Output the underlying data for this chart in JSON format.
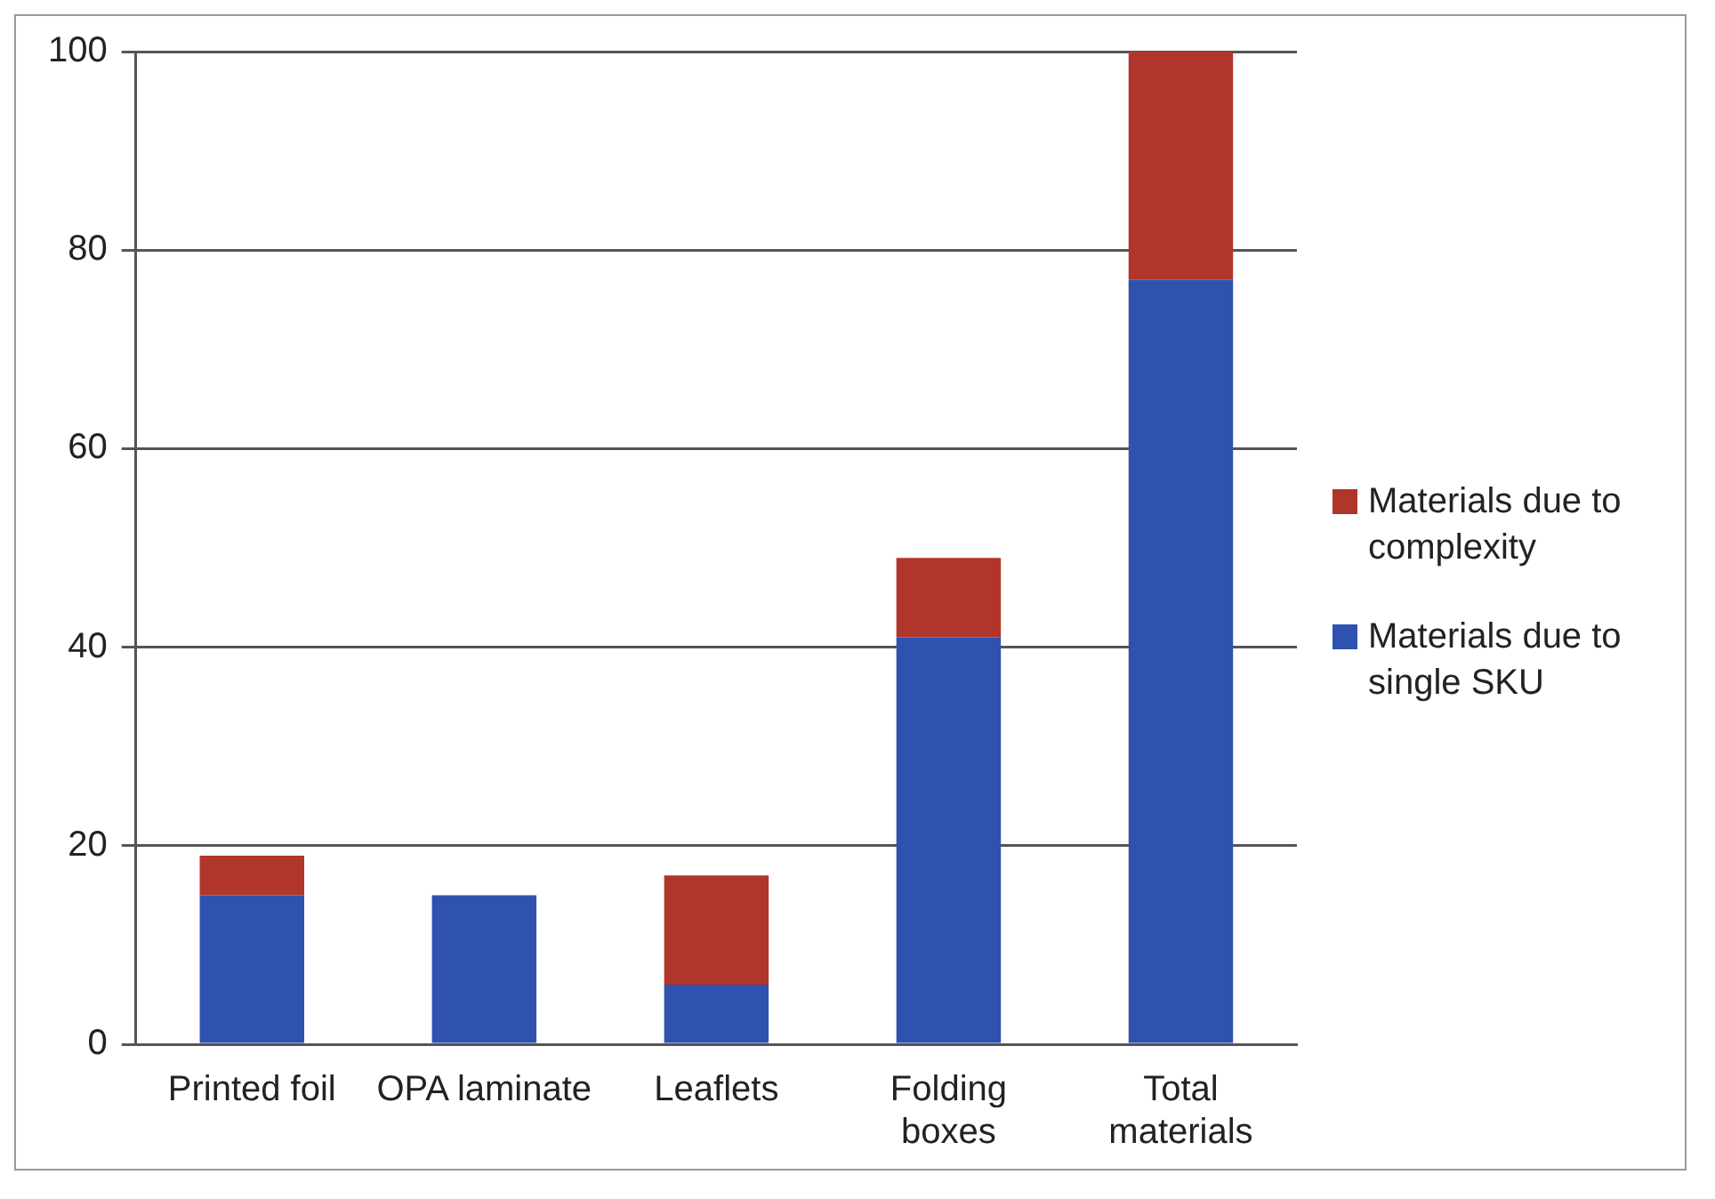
{
  "chart_data": {
    "type": "bar",
    "stacked": true,
    "categories": [
      "Printed foil",
      "OPA laminate",
      "Leaflets",
      "Folding boxes",
      "Total materials"
    ],
    "series": [
      {
        "name": "Materials due to single SKU",
        "color": "#2f52b0",
        "values": [
          15,
          15,
          6,
          41,
          77
        ]
      },
      {
        "name": "Materials due to complexity",
        "color": "#b0362c",
        "values": [
          4,
          0,
          11,
          8,
          23
        ]
      }
    ],
    "ylim": [
      0,
      100
    ],
    "yticks": [
      0,
      20,
      40,
      60,
      80,
      100
    ],
    "grid": "y",
    "legend": "right"
  }
}
